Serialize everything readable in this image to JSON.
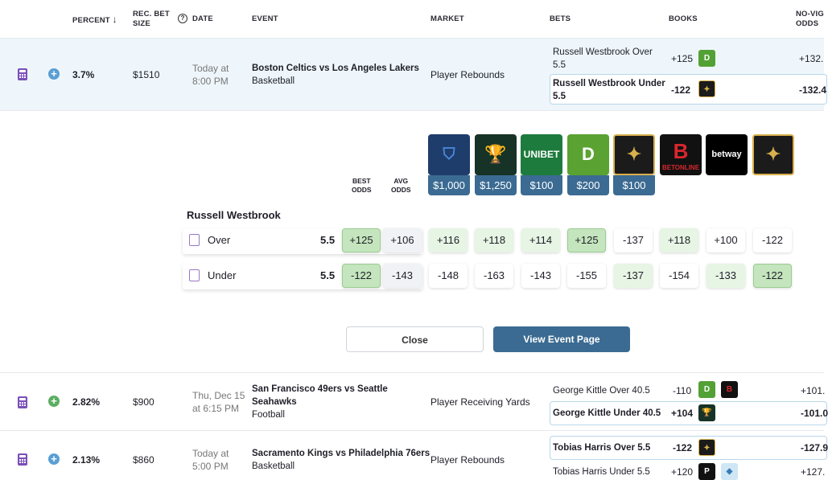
{
  "header": {
    "percent": "PERCENT",
    "rec_bet_size": "REC. BET\nSIZE",
    "date": "DATE",
    "event": "EVENT",
    "market": "MARKET",
    "bets": "BETS",
    "books": "BOOKS",
    "no_vig_odds": "NO-VIG\nODDS",
    "sort_arrow": "↓",
    "help": "?"
  },
  "rows": [
    {
      "percent": "3.7%",
      "bet_size": "$1510",
      "date_line1": "Today at",
      "date_line2": "8:00 PM",
      "event_line1": "Boston Celtics vs Los Angeles Lakers",
      "event_line2": "Basketball",
      "market": "Player Rebounds",
      "bets": [
        {
          "name_line1": "Russell Westbrook Over",
          "name_line2": "5.5",
          "odds": "+125",
          "no_vig": "+132."
        },
        {
          "name_line1": "Russell Westbrook Under",
          "name_line2": "5.5",
          "odds": "-122",
          "no_vig": "-132.4"
        }
      ]
    },
    {
      "percent": "2.82%",
      "bet_size": "$900",
      "date_line1": "Thu, Dec 15",
      "date_line2": "at 6:15 PM",
      "event_line1": "San Francisco 49ers vs Seattle",
      "event_line2": "Seahawks",
      "event_line3": "Football",
      "market": "Player Receiving Yards",
      "bets": [
        {
          "name": "George Kittle Over 40.5",
          "odds": "-110",
          "no_vig": "+101."
        },
        {
          "name": "George Kittle Under 40.5",
          "odds": "+104",
          "no_vig": "-101.0"
        }
      ]
    },
    {
      "percent": "2.13%",
      "bet_size": "$860",
      "date_line1": "Today at",
      "date_line2": "5:00 PM",
      "event_line1": "Sacramento Kings vs Philadelphia 76ers",
      "event_line2": "Basketball",
      "market": "Player Rebounds",
      "bets": [
        {
          "name": "Tobias Harris Over 5.5",
          "odds": "-122",
          "no_vig": "-127.9"
        },
        {
          "name": "Tobias Harris Under 5.5",
          "odds": "+120",
          "no_vig": "+127."
        }
      ]
    }
  ],
  "detail": {
    "best_odds_label": "BEST\nODDS",
    "avg_odds_label": "AVG\nODDS",
    "player": "Russell Westbrook",
    "limits": [
      "$1,000",
      "$1,250",
      "$100",
      "$200",
      "$100"
    ],
    "book_logos": [
      "FanDuel",
      "Caesars",
      "UNIBET",
      "DraftKings",
      "BetRivers",
      "BETONLINE",
      "betway",
      "BetRivers"
    ],
    "over": {
      "label": "Over",
      "line": "5.5",
      "best": "+125",
      "avg": "+106",
      "books": [
        "+116",
        "+118",
        "+114",
        "+125",
        "-137",
        "+118",
        "+100",
        "-122"
      ]
    },
    "under": {
      "label": "Under",
      "line": "5.5",
      "best": "-122",
      "avg": "-143",
      "books": [
        "-148",
        "-163",
        "-143",
        "-155",
        "-137",
        "-154",
        "-133",
        "-122"
      ]
    },
    "close_label": "Close",
    "view_event_label": "View Event Page"
  },
  "colors": {
    "accent": "#3b6b92",
    "green_light": "#e7f5e4",
    "green_mid": "#c4e5bd",
    "row_highlight": "#eef6fb"
  }
}
